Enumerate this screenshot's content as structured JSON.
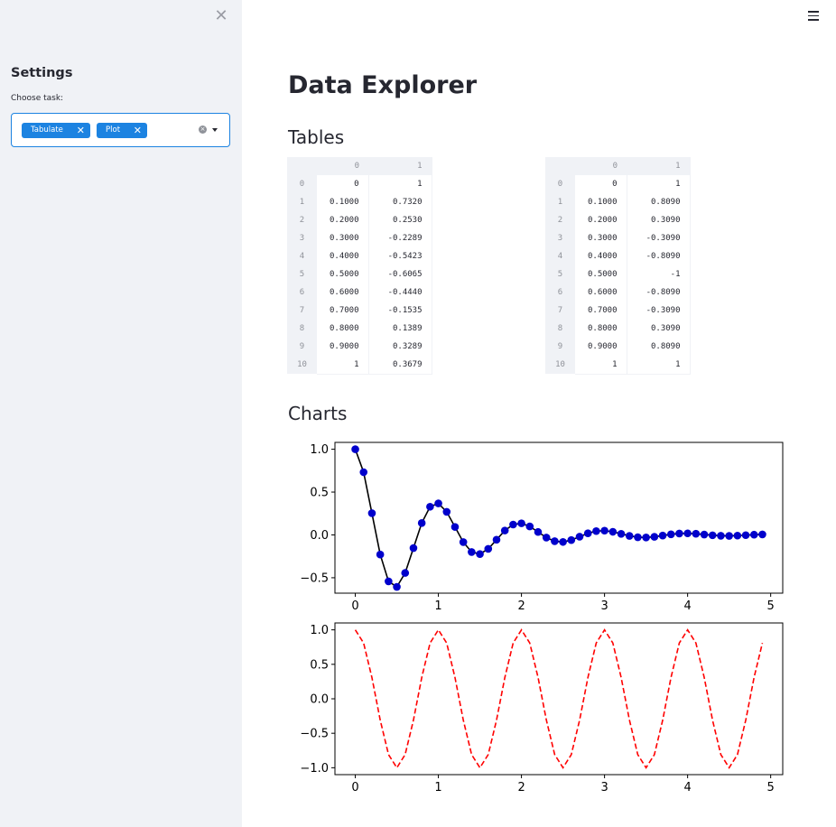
{
  "sidebar": {
    "title": "Settings",
    "task_label": "Choose task:",
    "selected": [
      {
        "label": "Tabulate"
      },
      {
        "label": "Plot"
      }
    ],
    "accent_color": "#1c83e1"
  },
  "main": {
    "title": "Data Explorer",
    "tables_heading": "Tables",
    "charts_heading": "Charts"
  },
  "table1": {
    "columns": [
      "0",
      "1"
    ],
    "rows": [
      [
        "0",
        "0",
        "1"
      ],
      [
        "1",
        "0.1000",
        "0.7320"
      ],
      [
        "2",
        "0.2000",
        "0.2530"
      ],
      [
        "3",
        "0.3000",
        "-0.2289"
      ],
      [
        "4",
        "0.4000",
        "-0.5423"
      ],
      [
        "5",
        "0.5000",
        "-0.6065"
      ],
      [
        "6",
        "0.6000",
        "-0.4440"
      ],
      [
        "7",
        "0.7000",
        "-0.1535"
      ],
      [
        "8",
        "0.8000",
        "0.1389"
      ],
      [
        "9",
        "0.9000",
        "0.3289"
      ],
      [
        "10",
        "1",
        "0.3679"
      ]
    ]
  },
  "table2": {
    "columns": [
      "0",
      "1"
    ],
    "rows": [
      [
        "0",
        "0",
        "1"
      ],
      [
        "1",
        "0.1000",
        "0.8090"
      ],
      [
        "2",
        "0.2000",
        "0.3090"
      ],
      [
        "3",
        "0.3000",
        "-0.3090"
      ],
      [
        "4",
        "0.4000",
        "-0.8090"
      ],
      [
        "5",
        "0.5000",
        "-1"
      ],
      [
        "6",
        "0.6000",
        "-0.8090"
      ],
      [
        "7",
        "0.7000",
        "-0.3090"
      ],
      [
        "8",
        "0.8000",
        "0.3090"
      ],
      [
        "9",
        "0.9000",
        "0.8090"
      ],
      [
        "10",
        "1",
        "1"
      ]
    ]
  },
  "chart_data": [
    {
      "type": "line",
      "title": "",
      "xlabel": "",
      "ylabel": "",
      "x_range": [
        0,
        4.9
      ],
      "x_step": 0.1,
      "xlim": [
        -0.245,
        5.145
      ],
      "ylim": [
        -0.68,
        1.08
      ],
      "xticks": [
        "0",
        "1",
        "2",
        "3",
        "4",
        "5"
      ],
      "yticks": [
        "1.0",
        "0.5",
        "0.0",
        "−0.5"
      ],
      "ytick_values": [
        1.0,
        0.5,
        0.0,
        -0.5
      ],
      "function": "exp(-t)*cos(2*pi*t)",
      "series": [
        {
          "line_color": "#000000",
          "marker_color": "#0000cc",
          "style": "solid",
          "marker": "circle"
        }
      ],
      "sample_values": [
        1.0,
        0.732,
        0.253,
        -0.2289,
        -0.5423,
        -0.6065,
        -0.444,
        -0.1535,
        0.1389,
        0.3289,
        0.3679
      ]
    },
    {
      "type": "line",
      "title": "",
      "xlabel": "",
      "ylabel": "",
      "x_range": [
        0,
        4.9
      ],
      "x_step": 0.1,
      "xlim": [
        -0.245,
        5.145
      ],
      "ylim": [
        -1.1,
        1.1
      ],
      "xticks": [
        "0",
        "1",
        "2",
        "3",
        "4",
        "5"
      ],
      "yticks": [
        "1.0",
        "0.5",
        "0.0",
        "−0.5",
        "−1.0"
      ],
      "ytick_values": [
        1.0,
        0.5,
        0.0,
        -0.5,
        -1.0
      ],
      "function": "cos(2*pi*t)",
      "series": [
        {
          "line_color": "#ff0000",
          "style": "dashed",
          "marker": "none"
        }
      ],
      "sample_values": [
        1.0,
        0.809,
        0.309,
        -0.309,
        -0.809,
        -1.0,
        -0.809,
        -0.309,
        0.309,
        0.809,
        1.0
      ]
    }
  ]
}
